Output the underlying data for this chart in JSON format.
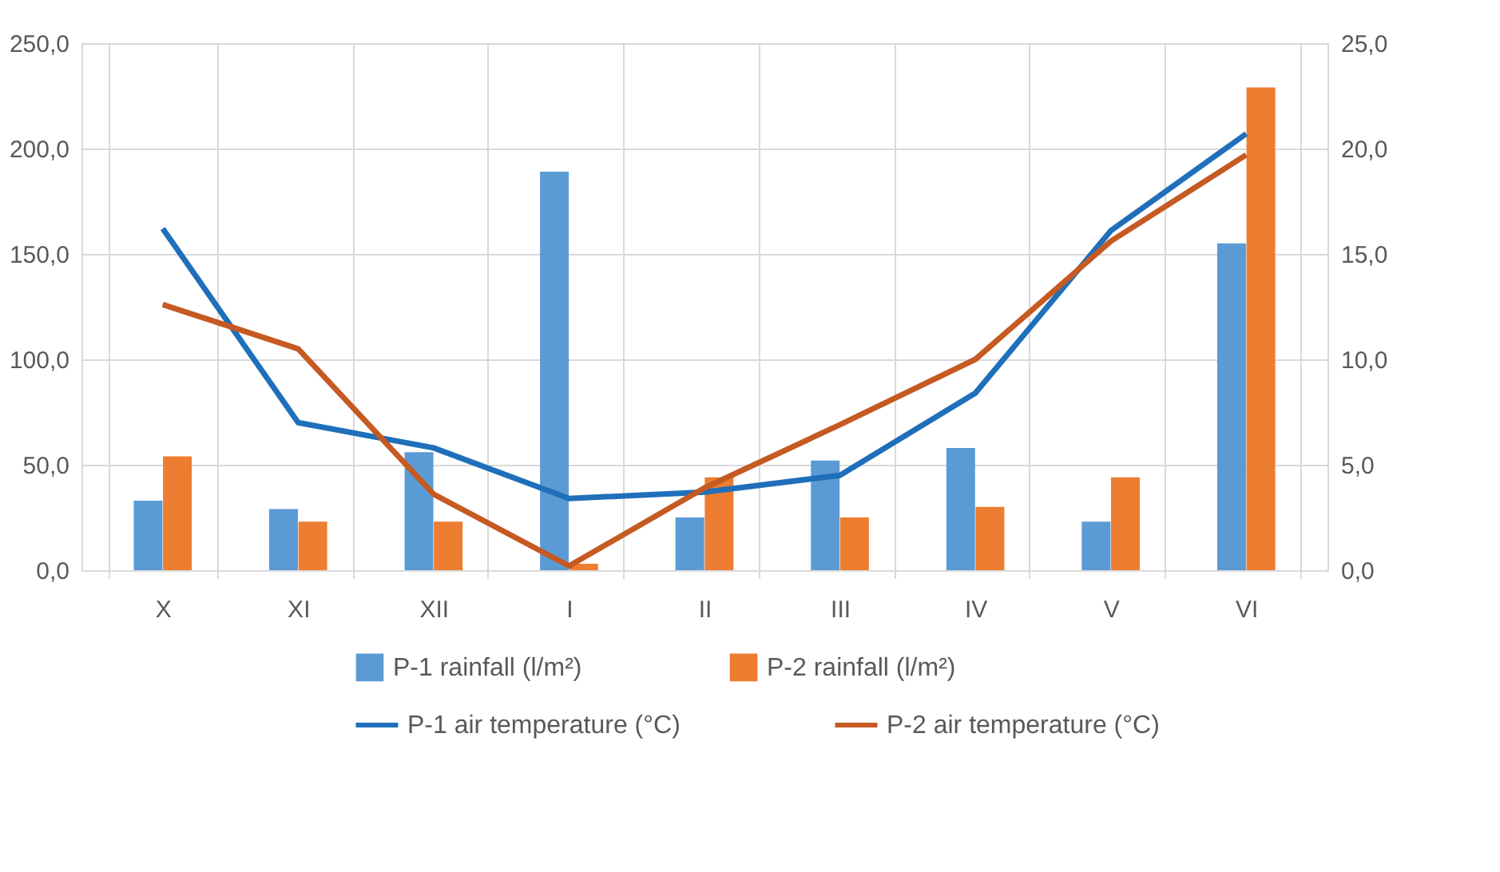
{
  "chart_data": {
    "type": "bar",
    "categories": [
      "X",
      "XI",
      "XII",
      "I",
      "II",
      "III",
      "IV",
      "V",
      "VI"
    ],
    "series": [
      {
        "name": "P-1 rainfall (l/m²)",
        "color": "#5b9bd5",
        "values": [
          33,
          29,
          56,
          189,
          25,
          52,
          58,
          23,
          155
        ]
      },
      {
        "name": "P-2 rainfall (l/m²)",
        "color": "#ed7d31",
        "values": [
          54,
          23,
          23,
          3,
          44,
          25,
          30,
          44,
          229
        ]
      },
      {
        "name": "P-1 air temperature (°C)",
        "color": "#1f6fba",
        "type": "line",
        "axis": "y2",
        "values": [
          16.2,
          7.0,
          5.8,
          3.4,
          3.7,
          4.5,
          8.4,
          16.1,
          20.7
        ]
      },
      {
        "name": "P-2 air temperature (°C)",
        "color": "#c55a22",
        "type": "line",
        "axis": "y2",
        "values": [
          12.6,
          10.5,
          3.6,
          0.2,
          3.9,
          6.9,
          10.0,
          15.6,
          19.7
        ]
      }
    ],
    "ylim": [
      0,
      250
    ],
    "yticks": [
      {
        "value": 0,
        "label": "0,0"
      },
      {
        "value": 50,
        "label": "50,0"
      },
      {
        "value": 100,
        "label": "100,0"
      },
      {
        "value": 150,
        "label": "150,0"
      },
      {
        "value": 200,
        "label": "200,0"
      },
      {
        "value": 250,
        "label": "250,0"
      }
    ],
    "y2lim": [
      0,
      25
    ],
    "y2ticks": [
      {
        "value": 0,
        "label": "0,0"
      },
      {
        "value": 5,
        "label": "5,0"
      },
      {
        "value": 10,
        "label": "10,0"
      },
      {
        "value": 15,
        "label": "15,0"
      },
      {
        "value": 20,
        "label": "20,0"
      },
      {
        "value": 25,
        "label": "25,0"
      }
    ],
    "grid": true,
    "legend": "bottom",
    "marker": "none",
    "line_style": "solid"
  }
}
